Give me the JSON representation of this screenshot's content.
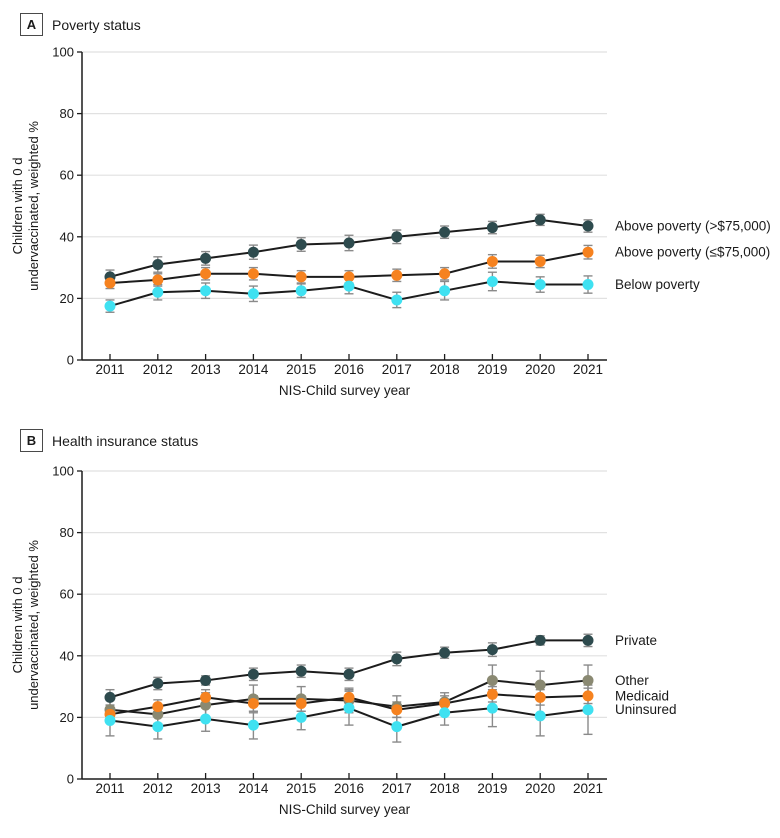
{
  "figure_colors": {
    "line": "#1c1c1c",
    "error_bar": "#8a8a8a",
    "grid": "#e1e1e1",
    "axis": "#1c1c1c",
    "text": "#1a1a1a",
    "dark_teal": "#2e4b4e",
    "orange": "#f6821f",
    "cyan": "#3fe1f1",
    "olive": "#8a8972"
  },
  "chart_data": [
    {
      "type": "line",
      "panel_label": "A",
      "panel_title": "Poverty status",
      "x": [
        2011,
        2012,
        2013,
        2014,
        2015,
        2016,
        2017,
        2018,
        2019,
        2020,
        2021
      ],
      "xlabel": "NIS-Child survey year",
      "ylabel_lines": [
        "Children with 0 d",
        "undervaccinated, weighted %"
      ],
      "ylim": [
        0,
        100
      ],
      "yticks": [
        0,
        20,
        40,
        60,
        80,
        100
      ],
      "grid": true,
      "legend_position": "right-of-last-point",
      "series": [
        {
          "name": "Above poverty (>$75,000)",
          "color": "#2e4b4e",
          "values": [
            27,
            31,
            33,
            35,
            37.5,
            38,
            40,
            41.5,
            43,
            45.5,
            43.5
          ],
          "errors": [
            2.2,
            2.5,
            2.2,
            2.3,
            2.2,
            2.5,
            2.2,
            2.0,
            2.0,
            1.8,
            2.0
          ]
        },
        {
          "name": "Above poverty (≤$75,000)",
          "color": "#f6821f",
          "values": [
            25,
            26,
            28,
            28,
            27,
            27,
            27.5,
            28,
            32,
            32,
            35
          ],
          "errors": [
            1.8,
            2.0,
            2.0,
            2.0,
            2.0,
            2.0,
            2.0,
            2.0,
            2.2,
            2.0,
            2.2
          ]
        },
        {
          "name": "Below poverty",
          "color": "#3fe1f1",
          "values": [
            17.5,
            22,
            22.5,
            21.5,
            22.5,
            24,
            19.5,
            22.5,
            25.5,
            24.5,
            24.5
          ],
          "errors": [
            2.0,
            2.5,
            2.5,
            2.5,
            2.2,
            2.5,
            2.5,
            3.0,
            3.0,
            2.5,
            2.8
          ]
        }
      ]
    },
    {
      "type": "line",
      "panel_label": "B",
      "panel_title": "Health insurance status",
      "x": [
        2011,
        2012,
        2013,
        2014,
        2015,
        2016,
        2017,
        2018,
        2019,
        2020,
        2021
      ],
      "xlabel": "NIS-Child survey year",
      "ylabel_lines": [
        "Children with 0 d",
        "undervaccinated, weighted %"
      ],
      "ylim": [
        0,
        100
      ],
      "yticks": [
        0,
        20,
        40,
        60,
        80,
        100
      ],
      "grid": true,
      "legend_position": "right-of-last-point",
      "series": [
        {
          "name": "Private",
          "color": "#2e4b4e",
          "values": [
            26.5,
            31,
            32,
            34,
            35,
            34,
            39,
            41,
            42,
            45,
            45
          ],
          "errors": [
            2.5,
            2.0,
            1.5,
            2.0,
            2.0,
            2.0,
            2.2,
            1.8,
            2.2,
            1.5,
            2.0
          ]
        },
        {
          "name": "Other",
          "color": "#8a8972",
          "values": [
            22.5,
            21,
            24,
            26,
            26,
            25.5,
            23.5,
            25,
            32,
            30.5,
            32
          ],
          "errors": [
            3.0,
            3.0,
            4.0,
            4.5,
            4.0,
            4.0,
            3.5,
            3.0,
            5.0,
            4.5,
            5.0
          ]
        },
        {
          "name": "Medicaid",
          "color": "#f6821f",
          "values": [
            21,
            23.5,
            26.5,
            24.5,
            24.5,
            26.5,
            22.5,
            24.5,
            27.5,
            26.5,
            27
          ],
          "errors": [
            2.0,
            2.2,
            2.5,
            2.5,
            2.5,
            2.5,
            2.5,
            2.5,
            2.5,
            2.5,
            2.5
          ]
        },
        {
          "name": "Uninsured",
          "color": "#3fe1f1",
          "values": [
            19,
            17,
            19.5,
            17.5,
            20,
            23,
            17,
            21.5,
            23,
            20.5,
            22.5
          ],
          "errors": [
            5.0,
            4.0,
            4.0,
            4.5,
            4.0,
            5.5,
            5.0,
            4.0,
            6.0,
            6.5,
            8.0
          ]
        }
      ]
    }
  ]
}
